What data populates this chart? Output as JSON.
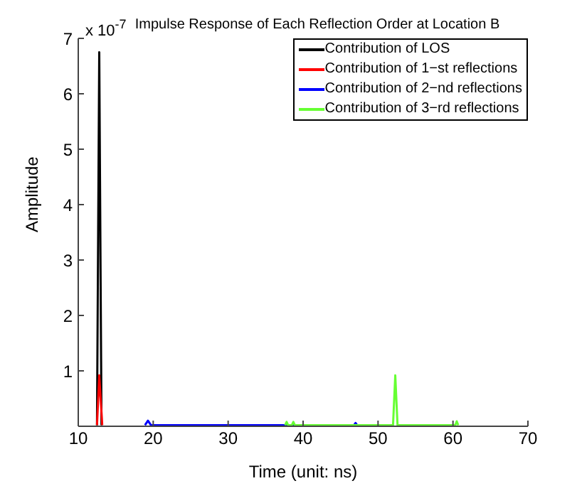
{
  "chart_data": {
    "type": "line",
    "title": "Impulse Response of Each Reflection Order at Location B",
    "xlabel": "Time (unit: ns)",
    "ylabel": "Amplitude",
    "annotations": [
      "x 10$^{-7}$"
    ],
    "xlim": [
      10,
      70
    ],
    "xticks": [
      10,
      20,
      30,
      40,
      50,
      60,
      70
    ],
    "ylim": [
      0,
      7
    ],
    "yticks": [
      1,
      2,
      3,
      4,
      5,
      6,
      7
    ],
    "grid": false,
    "legend": "top right",
    "marker": "none",
    "line_style": "solid",
    "series": [
      {
        "name": "Contribution of LOS",
        "color": "#000000",
        "x": [
          12.5,
          12.8,
          13.1
        ],
        "values": [
          0.02,
          6.75,
          0.02
        ]
      },
      {
        "name": "Contribution of 1−st reflections",
        "color": "#ff0000",
        "x": [
          12.5,
          12.8,
          13.2
        ],
        "values": [
          0.02,
          0.92,
          0.02
        ]
      },
      {
        "name": "Contribution of 2−nd reflections",
        "color": "#0000ff",
        "x": [
          18.9,
          19.3,
          19.7,
          46.8,
          47.0,
          47.2
        ],
        "values": [
          0.02,
          0.1,
          0.02,
          0.02,
          0.06,
          0.02
        ]
      },
      {
        "name": "Contribution of 3−rd reflections",
        "color": "#66ff33",
        "x": [
          37.6,
          37.8,
          38.0,
          38.5,
          38.7,
          38.9,
          52.0,
          52.3,
          52.6,
          60.3,
          60.5,
          60.7
        ],
        "values": [
          0.02,
          0.08,
          0.02,
          0.02,
          0.08,
          0.02,
          0.02,
          0.92,
          0.02,
          0.02,
          0.09,
          0.02
        ]
      }
    ]
  }
}
